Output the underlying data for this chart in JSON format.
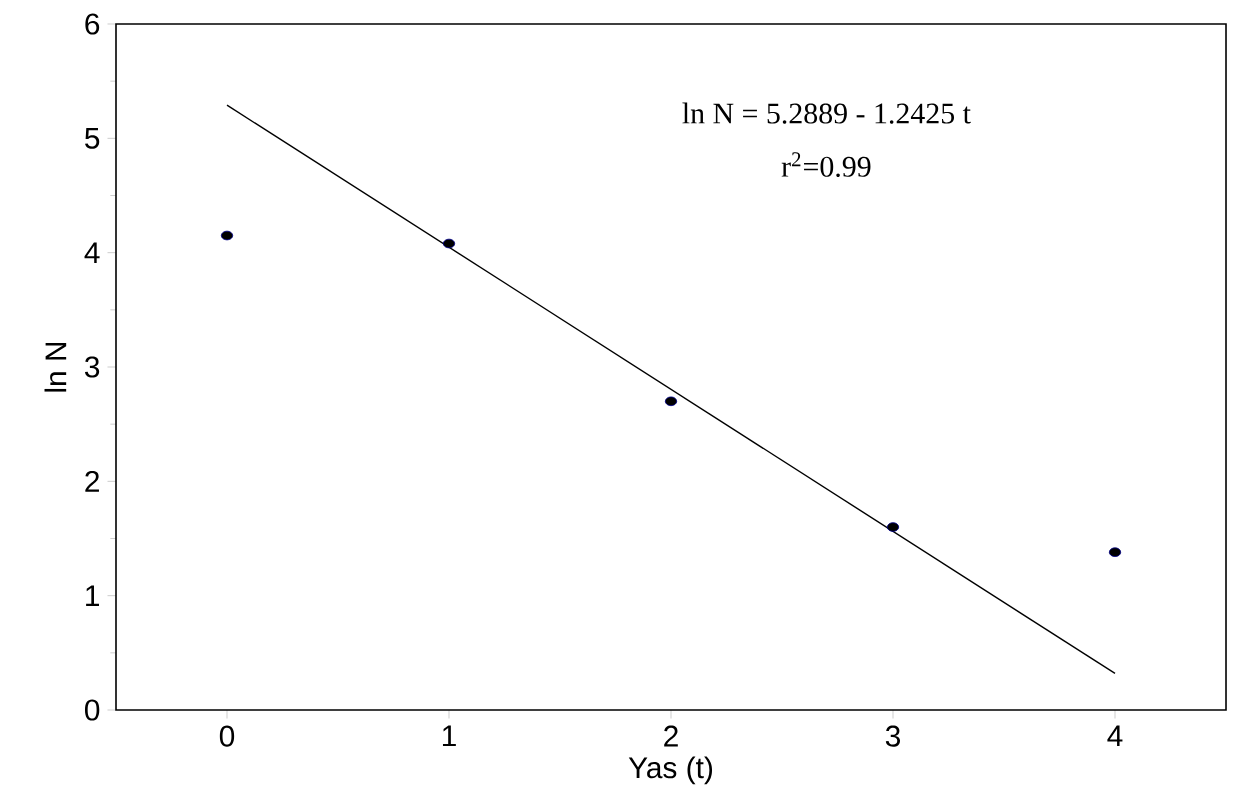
{
  "chart_data": {
    "type": "scatter",
    "xlabel": "Yas (t)",
    "ylabel": "ln N",
    "xlim": [
      -0.5,
      4.5
    ],
    "ylim": [
      0,
      6
    ],
    "xticks": [
      0,
      1,
      2,
      3,
      4
    ],
    "yticks": [
      0,
      1,
      2,
      3,
      4,
      5,
      6
    ],
    "series": [
      {
        "x": [
          0,
          1,
          2,
          3,
          4
        ],
        "values": [
          4.15,
          4.08,
          2.7,
          1.6,
          1.38
        ],
        "color": "#00008b",
        "marker": "circle"
      },
      {
        "type": "line",
        "x": [
          0,
          4
        ],
        "values": [
          5.29,
          0.32
        ],
        "color": "#000000",
        "marker": "none"
      }
    ],
    "annotations": [
      "ln N = 5.2889 - 1.2425 t",
      "r$^{2}$=0.99"
    ]
  }
}
